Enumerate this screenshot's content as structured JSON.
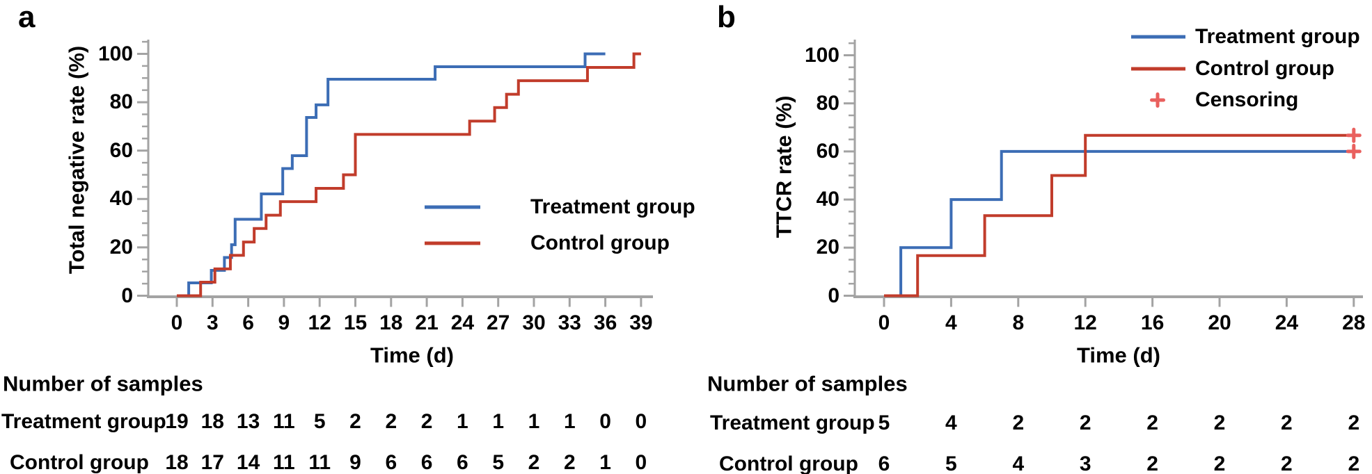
{
  "colors": {
    "treatment": "#3C6DB5",
    "control": "#C13C2B",
    "censor": "#E9605E",
    "axis": "#A3A3A3",
    "text": "#000000",
    "background": "#FFFFFF"
  },
  "chart_data": [
    {
      "panel": "a",
      "type": "step_line",
      "letter": "a",
      "ylabel": "Total negative rate (%)",
      "xlabel": "Time (d)",
      "xlim": [
        0,
        39
      ],
      "ylim": [
        0,
        100
      ],
      "grid": false,
      "xticks": [
        0,
        3,
        6,
        9,
        12,
        15,
        18,
        21,
        24,
        27,
        30,
        33,
        36,
        39
      ],
      "yticks": [
        0,
        20,
        40,
        60,
        80,
        100
      ],
      "series": [
        {
          "name": "Treatment group",
          "color_key": "treatment",
          "steps": [
            [
              1,
              5.3
            ],
            [
              2.9,
              10.5
            ],
            [
              4,
              15.8
            ],
            [
              4.6,
              21.1
            ],
            [
              4.9,
              31.6
            ],
            [
              7.1,
              42.1
            ],
            [
              8.9,
              52.6
            ],
            [
              9.7,
              57.9
            ],
            [
              10.9,
              73.7
            ],
            [
              11.7,
              78.9
            ],
            [
              12.7,
              89.5
            ],
            [
              21.7,
              94.7
            ],
            [
              34.3,
              100
            ]
          ],
          "end_day": 36
        },
        {
          "name": "Control group",
          "color_key": "control",
          "steps": [
            [
              2,
              5.6
            ],
            [
              3.2,
              11.1
            ],
            [
              4.5,
              16.7
            ],
            [
              5.6,
              22.2
            ],
            [
              6.5,
              27.8
            ],
            [
              7.5,
              33.3
            ],
            [
              8.7,
              38.9
            ],
            [
              11.7,
              44.4
            ],
            [
              14,
              50
            ],
            [
              15,
              66.7
            ],
            [
              24.6,
              72.2
            ],
            [
              26.7,
              77.8
            ],
            [
              27.7,
              83.3
            ],
            [
              28.7,
              88.9
            ],
            [
              34.5,
              94.4
            ],
            [
              38.4,
              100
            ]
          ],
          "end_day": 39
        }
      ],
      "censoring": [],
      "legend": {
        "position": "center-right-inside",
        "rows": [
          {
            "label": "Treatment group",
            "marker": "line",
            "color_key": "treatment"
          },
          {
            "label": "Control group",
            "marker": "line",
            "color_key": "control"
          }
        ]
      },
      "risk_table": {
        "title": "Number of  samples",
        "col_days": [
          0,
          3,
          6,
          9,
          12,
          15,
          18,
          21,
          24,
          27,
          30,
          33,
          36,
          39
        ],
        "rows": [
          {
            "label": "Treatment group",
            "values": [
              "19",
              "18",
              "13",
              "11",
              "5",
              "2",
              "2",
              "2",
              "1",
              "1",
              "1",
              "1",
              "0",
              "0"
            ]
          },
          {
            "label": "Control group",
            "values": [
              "18",
              "17",
              "14",
              "11",
              "11",
              "9",
              "6",
              "6",
              "6",
              "5",
              "2",
              "2",
              "1",
              "0"
            ]
          }
        ]
      }
    },
    {
      "panel": "b",
      "type": "step_line",
      "letter": "b",
      "ylabel": "TTCR rate (%)",
      "xlabel": "Time (d)",
      "xlim": [
        0,
        28
      ],
      "ylim": [
        0,
        100
      ],
      "grid": false,
      "xticks": [
        0,
        4,
        8,
        12,
        16,
        20,
        24,
        28
      ],
      "yticks": [
        0,
        20,
        40,
        60,
        80,
        100
      ],
      "series": [
        {
          "name": "Treatment group",
          "color_key": "treatment",
          "steps": [
            [
              1,
              20
            ],
            [
              4,
              40
            ],
            [
              7,
              60
            ]
          ],
          "end_day": 28
        },
        {
          "name": "Control group",
          "color_key": "control",
          "steps": [
            [
              2,
              16.7
            ],
            [
              6,
              33.3
            ],
            [
              10,
              50
            ],
            [
              12,
              66.7
            ]
          ],
          "end_day": 28
        }
      ],
      "censoring": [
        {
          "series": "Treatment group",
          "day": 28,
          "pct": 60
        },
        {
          "series": "Control group",
          "day": 28,
          "pct": 66.7
        }
      ],
      "legend": {
        "position": "top-right-inside",
        "rows": [
          {
            "label": "Treatment group",
            "marker": "line",
            "color_key": "treatment"
          },
          {
            "label": "Control group",
            "marker": "line",
            "color_key": "control"
          },
          {
            "label": "Censoring",
            "marker": "plus",
            "color_key": "censor"
          }
        ]
      },
      "risk_table": {
        "title": "Number of  samples",
        "col_days": [
          0,
          4,
          8,
          12,
          16,
          20,
          24,
          28
        ],
        "rows": [
          {
            "label": "Treatment group",
            "values": [
              "5",
              "4",
              "2",
              "2",
              "2",
              "2",
              "2",
              "2"
            ]
          },
          {
            "label": "Control group",
            "values": [
              "6",
              "5",
              "4",
              "3",
              "2",
              "2",
              "2",
              "2"
            ]
          }
        ]
      }
    }
  ]
}
